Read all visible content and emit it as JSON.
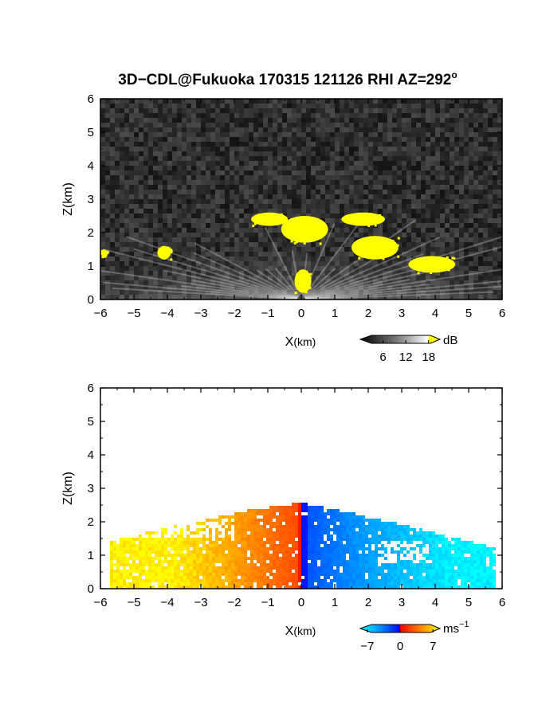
{
  "chart_data": [
    {
      "type": "heatmap",
      "title": "3D−CDL@Fukuoka 170315 121126 RHI AZ=292",
      "title_superscript": "o",
      "xlabel_main": "X",
      "xlabel_unit": "(km)",
      "ylabel": "Z(km)",
      "xlim": [
        -6,
        6
      ],
      "ylim": [
        0,
        6
      ],
      "xticks": [
        -6,
        -5,
        -4,
        -3,
        -2,
        -1,
        0,
        1,
        2,
        3,
        4,
        5,
        6
      ],
      "yticks": [
        0,
        1,
        2,
        3,
        4,
        5,
        6
      ],
      "colorbar": {
        "unit": "dB",
        "unit_sup": "",
        "ticks": [
          6,
          12,
          18
        ],
        "range": [
          0,
          21
        ],
        "colors": [
          "#000000",
          "#404040",
          "#808080",
          "#c0c0c0",
          "#ffffff",
          "#ffff00"
        ]
      },
      "colors": {
        "background": "#2a2a2a",
        "saturated": "#ffff00"
      },
      "echo_regions": [
        {
          "x": [
            -1.5,
            -0.4
          ],
          "z": [
            2.2,
            2.6
          ]
        },
        {
          "x": [
            -0.6,
            0.8
          ],
          "z": [
            1.7,
            2.5
          ]
        },
        {
          "x": [
            1.2,
            2.5
          ],
          "z": [
            2.2,
            2.6
          ]
        },
        {
          "x": [
            1.5,
            2.9
          ],
          "z": [
            1.2,
            1.9
          ]
        },
        {
          "x": [
            3.2,
            4.6
          ],
          "z": [
            0.8,
            1.3
          ]
        },
        {
          "x": [
            -4.3,
            -3.9
          ],
          "z": [
            1.2,
            1.6
          ]
        },
        {
          "x": [
            -6.0,
            -5.8
          ],
          "z": [
            1.3,
            1.5
          ]
        },
        {
          "x": [
            -0.2,
            0.3
          ],
          "z": [
            0.2,
            0.9
          ]
        }
      ]
    },
    {
      "type": "heatmap",
      "xlabel_main": "X",
      "xlabel_unit": "(km)",
      "ylabel": "Z(km)",
      "xlim": [
        -6,
        6
      ],
      "ylim": [
        0,
        6
      ],
      "xticks": [
        -6,
        -5,
        -4,
        -3,
        -2,
        -1,
        0,
        1,
        2,
        3,
        4,
        5,
        6
      ],
      "yticks": [
        0,
        1,
        2,
        3,
        4,
        5,
        6
      ],
      "colorbar": {
        "unit": "ms",
        "unit_sup": "−1",
        "ticks": [
          -7,
          0,
          7
        ],
        "range": [
          -8.5,
          8.5
        ],
        "colors": [
          "#00ffff",
          "#0090ff",
          "#0000ff",
          "#ff0000",
          "#ff8000",
          "#ffff00"
        ]
      },
      "velocity_field": {
        "negative_x": "approaching, yellow to orange to red near x=0 (0 to +7 m/s)",
        "positive_x": "receding, blue to cyan (0 to −7 m/s)",
        "top_km": 2.6
      }
    }
  ]
}
